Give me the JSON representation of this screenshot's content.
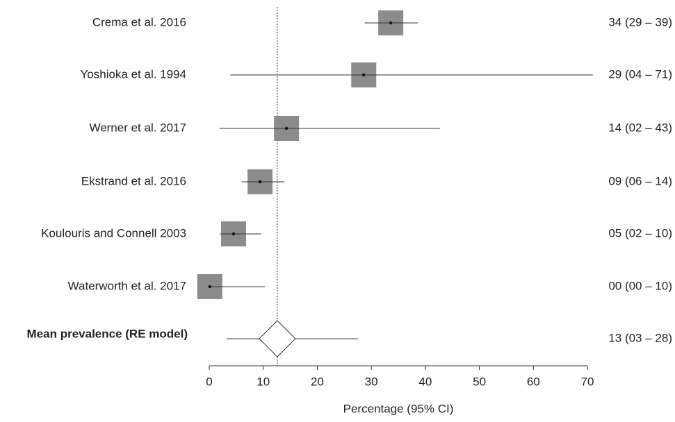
{
  "chart_data": {
    "type": "forest",
    "xlabel": "Percentage (95% CI)",
    "xlim": [
      0,
      70
    ],
    "xticks": [
      0,
      10,
      20,
      30,
      40,
      50,
      60,
      70
    ],
    "color": "#8c8c8c",
    "categories": [
      "Crema et al. 2016",
      "Yoshioka et al. 1994",
      "Werner et al. 2017",
      "Ekstrand et al. 2016",
      "Koulouris and Connell 2003",
      "Waterworth et al. 2017"
    ],
    "estimates": [
      33.6,
      28.6,
      14.3,
      9.4,
      4.5,
      0.1
    ],
    "lower": [
      28.8,
      3.9,
      1.9,
      6.0,
      2.0,
      0.0
    ],
    "upper": [
      38.6,
      71.0,
      42.7,
      13.9,
      9.6,
      10.3
    ],
    "value_labels": [
      "34 (29 – 39)",
      "29 (04 – 71)",
      "14 (02 – 43)",
      "09 (06 – 14)",
      "05 (02 – 10)",
      "00 (00 – 10)"
    ],
    "summary": {
      "label": "Mean prevalence (RE model)",
      "estimate": 12.6,
      "lower": 3.2,
      "upper": 27.5,
      "value_label": "13 (03 – 28)"
    }
  }
}
